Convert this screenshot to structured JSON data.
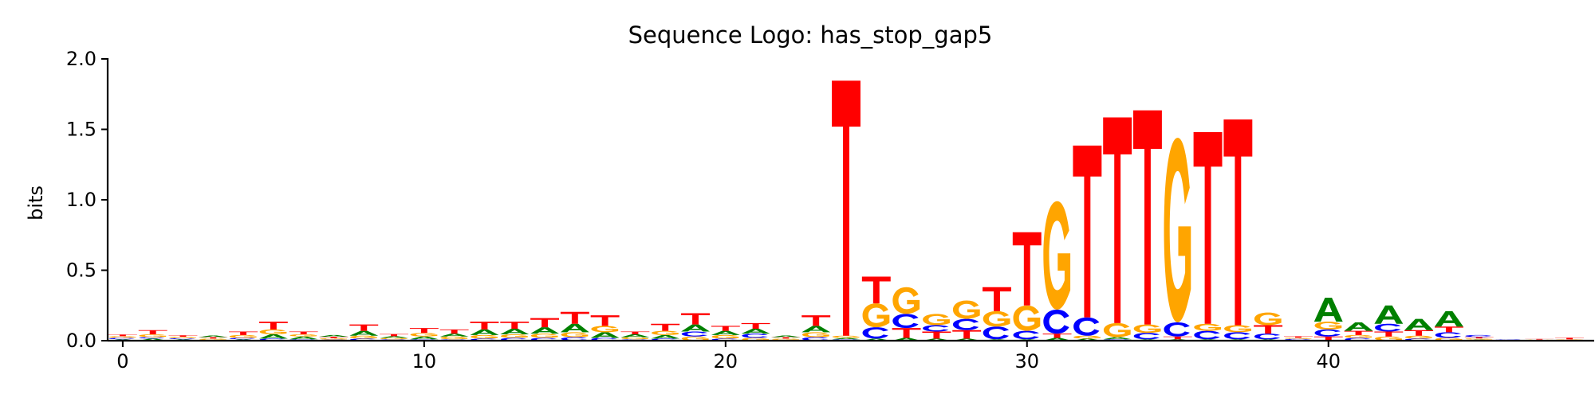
{
  "chart_data": {
    "type": "sequence-logo",
    "title": "Sequence Logo: has_stop_gap5",
    "xlabel": "",
    "ylabel": "bits",
    "xlim": [
      -0.5,
      48.5
    ],
    "ylim": [
      0,
      2.0
    ],
    "x_ticks": [
      0,
      10,
      20,
      30,
      40
    ],
    "y_ticks": [
      0.0,
      0.5,
      1.0,
      1.5,
      2.0
    ],
    "y_tick_labels": [
      "0.0",
      "0.5",
      "1.0",
      "1.5",
      "2.0"
    ],
    "grid": false,
    "colors": {
      "A": "#008000",
      "C": "#0000ff",
      "G": "#ffa500",
      "T": "#ff0000"
    },
    "positions": [
      {
        "pos": 0,
        "stack": [
          [
            "A",
            0.01
          ],
          [
            "C",
            0.01
          ],
          [
            "G",
            0.012
          ],
          [
            "T",
            0.012
          ]
        ]
      },
      {
        "pos": 1,
        "stack": [
          [
            "A",
            0.015
          ],
          [
            "C",
            0.01
          ],
          [
            "G",
            0.02
          ],
          [
            "T",
            0.03
          ]
        ]
      },
      {
        "pos": 2,
        "stack": [
          [
            "A",
            0.01
          ],
          [
            "C",
            0.008
          ],
          [
            "G",
            0.01
          ],
          [
            "T",
            0.01
          ]
        ]
      },
      {
        "pos": 3,
        "stack": [
          [
            "C",
            0.005
          ],
          [
            "G",
            0.01
          ],
          [
            "T",
            0.01
          ],
          [
            "A",
            0.012
          ]
        ]
      },
      {
        "pos": 4,
        "stack": [
          [
            "A",
            0.01
          ],
          [
            "C",
            0.01
          ],
          [
            "G",
            0.02
          ],
          [
            "T",
            0.025
          ]
        ]
      },
      {
        "pos": 5,
        "stack": [
          [
            "C",
            0.015
          ],
          [
            "A",
            0.03
          ],
          [
            "G",
            0.035
          ],
          [
            "T",
            0.055
          ]
        ]
      },
      {
        "pos": 6,
        "stack": [
          [
            "C",
            0.01
          ],
          [
            "A",
            0.02
          ],
          [
            "G",
            0.015
          ],
          [
            "T",
            0.02
          ]
        ]
      },
      {
        "pos": 7,
        "stack": [
          [
            "C",
            0.008
          ],
          [
            "G",
            0.01
          ],
          [
            "T",
            0.01
          ],
          [
            "A",
            0.012
          ]
        ]
      },
      {
        "pos": 8,
        "stack": [
          [
            "C",
            0.015
          ],
          [
            "G",
            0.02
          ],
          [
            "A",
            0.035
          ],
          [
            "T",
            0.045
          ]
        ]
      },
      {
        "pos": 9,
        "stack": [
          [
            "C",
            0.01
          ],
          [
            "G",
            0.01
          ],
          [
            "A",
            0.012
          ],
          [
            "T",
            0.015
          ]
        ]
      },
      {
        "pos": 10,
        "stack": [
          [
            "C",
            0.01
          ],
          [
            "A",
            0.02
          ],
          [
            "G",
            0.025
          ],
          [
            "T",
            0.035
          ]
        ]
      },
      {
        "pos": 11,
        "stack": [
          [
            "C",
            0.01
          ],
          [
            "G",
            0.02
          ],
          [
            "A",
            0.02
          ],
          [
            "T",
            0.03
          ]
        ]
      },
      {
        "pos": 12,
        "stack": [
          [
            "C",
            0.015
          ],
          [
            "G",
            0.025
          ],
          [
            "A",
            0.04
          ],
          [
            "T",
            0.055
          ]
        ]
      },
      {
        "pos": 13,
        "stack": [
          [
            "C",
            0.02
          ],
          [
            "G",
            0.025
          ],
          [
            "A",
            0.04
          ],
          [
            "T",
            0.05
          ]
        ]
      },
      {
        "pos": 14,
        "stack": [
          [
            "C",
            0.02
          ],
          [
            "G",
            0.03
          ],
          [
            "A",
            0.045
          ],
          [
            "T",
            0.065
          ]
        ]
      },
      {
        "pos": 15,
        "stack": [
          [
            "C",
            0.025
          ],
          [
            "G",
            0.035
          ],
          [
            "A",
            0.06
          ],
          [
            "T",
            0.085
          ]
        ]
      },
      {
        "pos": 16,
        "stack": [
          [
            "C",
            0.02
          ],
          [
            "A",
            0.04
          ],
          [
            "G",
            0.045
          ],
          [
            "T",
            0.075
          ]
        ]
      },
      {
        "pos": 17,
        "stack": [
          [
            "C",
            0.01
          ],
          [
            "G",
            0.015
          ],
          [
            "A",
            0.02
          ],
          [
            "T",
            0.02
          ]
        ]
      },
      {
        "pos": 18,
        "stack": [
          [
            "C",
            0.015
          ],
          [
            "A",
            0.025
          ],
          [
            "G",
            0.03
          ],
          [
            "T",
            0.05
          ]
        ]
      },
      {
        "pos": 19,
        "stack": [
          [
            "G",
            0.03
          ],
          [
            "C",
            0.035
          ],
          [
            "A",
            0.05
          ],
          [
            "T",
            0.08
          ]
        ]
      },
      {
        "pos": 20,
        "stack": [
          [
            "C",
            0.015
          ],
          [
            "G",
            0.025
          ],
          [
            "A",
            0.03
          ],
          [
            "T",
            0.035
          ]
        ]
      },
      {
        "pos": 21,
        "stack": [
          [
            "G",
            0.02
          ],
          [
            "C",
            0.03
          ],
          [
            "A",
            0.035
          ],
          [
            "T",
            0.04
          ]
        ]
      },
      {
        "pos": 22,
        "stack": [
          [
            "C",
            0.005
          ],
          [
            "G",
            0.01
          ],
          [
            "T",
            0.01
          ],
          [
            "A",
            0.012
          ]
        ]
      },
      {
        "pos": 23,
        "stack": [
          [
            "C",
            0.025
          ],
          [
            "G",
            0.035
          ],
          [
            "A",
            0.045
          ],
          [
            "T",
            0.075
          ]
        ]
      },
      {
        "pos": 24,
        "stack": [
          [
            "C",
            0.01
          ],
          [
            "A",
            0.01
          ],
          [
            "G",
            0.015
          ],
          [
            "T",
            1.81
          ]
        ]
      },
      {
        "pos": 25,
        "stack": [
          [
            "A",
            0.015
          ],
          [
            "C",
            0.08
          ],
          [
            "G",
            0.17
          ],
          [
            "T",
            0.19
          ]
        ]
      },
      {
        "pos": 26,
        "stack": [
          [
            "A",
            0.02
          ],
          [
            "T",
            0.07
          ],
          [
            "C",
            0.1
          ],
          [
            "G",
            0.19
          ]
        ]
      },
      {
        "pos": 27,
        "stack": [
          [
            "A",
            0.015
          ],
          [
            "T",
            0.05
          ],
          [
            "C",
            0.045
          ],
          [
            "G",
            0.08
          ]
        ]
      },
      {
        "pos": 28,
        "stack": [
          [
            "A",
            0.015
          ],
          [
            "T",
            0.06
          ],
          [
            "C",
            0.08
          ],
          [
            "G",
            0.13
          ]
        ]
      },
      {
        "pos": 29,
        "stack": [
          [
            "A",
            0.01
          ],
          [
            "C",
            0.09
          ],
          [
            "G",
            0.11
          ],
          [
            "T",
            0.17
          ]
        ]
      },
      {
        "pos": 30,
        "stack": [
          [
            "A",
            0.01
          ],
          [
            "C",
            0.06
          ],
          [
            "G",
            0.18
          ],
          [
            "T",
            0.52
          ]
        ]
      },
      {
        "pos": 31,
        "stack": [
          [
            "A",
            0.02
          ],
          [
            "T",
            0.03
          ],
          [
            "C",
            0.17
          ],
          [
            "G",
            0.77
          ]
        ]
      },
      {
        "pos": 32,
        "stack": [
          [
            "A",
            0.015
          ],
          [
            "G",
            0.02
          ],
          [
            "C",
            0.13
          ],
          [
            "T",
            1.22
          ]
        ]
      },
      {
        "pos": 33,
        "stack": [
          [
            "C",
            0.01
          ],
          [
            "A",
            0.015
          ],
          [
            "G",
            0.1
          ],
          [
            "T",
            1.46
          ]
        ]
      },
      {
        "pos": 34,
        "stack": [
          [
            "A",
            0.01
          ],
          [
            "C",
            0.045
          ],
          [
            "G",
            0.06
          ],
          [
            "T",
            1.52
          ]
        ]
      },
      {
        "pos": 35,
        "stack": [
          [
            "A",
            0.01
          ],
          [
            "T",
            0.02
          ],
          [
            "C",
            0.1
          ],
          [
            "G",
            1.31
          ]
        ]
      },
      {
        "pos": 36,
        "stack": [
          [
            "A",
            0.01
          ],
          [
            "C",
            0.06
          ],
          [
            "G",
            0.05
          ],
          [
            "T",
            1.36
          ]
        ]
      },
      {
        "pos": 37,
        "stack": [
          [
            "A",
            0.01
          ],
          [
            "C",
            0.05
          ],
          [
            "G",
            0.05
          ],
          [
            "T",
            1.46
          ]
        ]
      },
      {
        "pos": 38,
        "stack": [
          [
            "A",
            0.01
          ],
          [
            "C",
            0.04
          ],
          [
            "T",
            0.06
          ],
          [
            "G",
            0.09
          ]
        ]
      },
      {
        "pos": 39,
        "stack": [
          [
            "A",
            0.005
          ],
          [
            "C",
            0.008
          ],
          [
            "G",
            0.008
          ],
          [
            "T",
            0.01
          ]
        ]
      },
      {
        "pos": 40,
        "stack": [
          [
            "T",
            0.03
          ],
          [
            "C",
            0.05
          ],
          [
            "G",
            0.055
          ],
          [
            "A",
            0.17
          ]
        ]
      },
      {
        "pos": 41,
        "stack": [
          [
            "C",
            0.02
          ],
          [
            "G",
            0.02
          ],
          [
            "T",
            0.03
          ],
          [
            "A",
            0.06
          ]
        ]
      },
      {
        "pos": 42,
        "stack": [
          [
            "G",
            0.03
          ],
          [
            "T",
            0.035
          ],
          [
            "C",
            0.055
          ],
          [
            "A",
            0.13
          ]
        ]
      },
      {
        "pos": 43,
        "stack": [
          [
            "C",
            0.015
          ],
          [
            "G",
            0.02
          ],
          [
            "T",
            0.04
          ],
          [
            "A",
            0.08
          ]
        ]
      },
      {
        "pos": 44,
        "stack": [
          [
            "G",
            0.02
          ],
          [
            "C",
            0.04
          ],
          [
            "T",
            0.04
          ],
          [
            "A",
            0.11
          ]
        ]
      },
      {
        "pos": 45,
        "stack": [
          [
            "A",
            0.008
          ],
          [
            "G",
            0.008
          ],
          [
            "T",
            0.01
          ],
          [
            "C",
            0.014
          ]
        ]
      },
      {
        "pos": 46,
        "stack": [
          [
            "A",
            0.002
          ],
          [
            "G",
            0.002
          ],
          [
            "T",
            0.002
          ],
          [
            "C",
            0.003
          ]
        ]
      },
      {
        "pos": 47,
        "stack": [
          [
            "A",
            0.002
          ],
          [
            "C",
            0.003
          ],
          [
            "G",
            0.003
          ],
          [
            "T",
            0.005
          ]
        ]
      },
      {
        "pos": 48,
        "stack": [
          [
            "A",
            0.002
          ],
          [
            "C",
            0.003
          ],
          [
            "G",
            0.004
          ],
          [
            "T",
            0.012
          ]
        ]
      }
    ]
  }
}
